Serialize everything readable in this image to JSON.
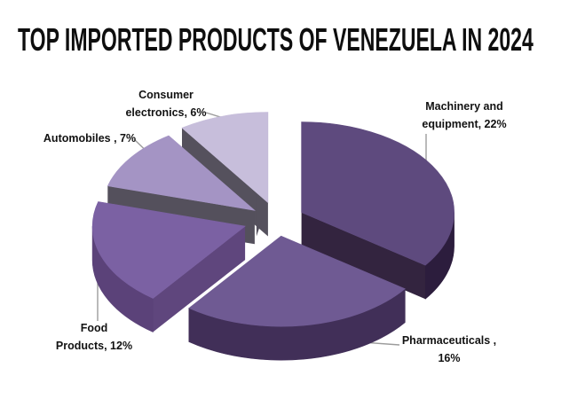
{
  "title": "TOP IMPORTED PRODUCTS OF VENEZUELA IN 2024",
  "chart_data": {
    "type": "pie",
    "style": "3d_exploded",
    "title": "TOP IMPORTED PRODUCTS OF VENEZUELA IN 2024",
    "unit": "percent",
    "start_angle_deg": 90,
    "direction": "clockwise",
    "legend_position": "none",
    "categories": [
      "Machinery and equipment",
      "Pharmaceuticals",
      "Food Products",
      "Automobiles",
      "Consumer electronics"
    ],
    "values": [
      22,
      16,
      12,
      7,
      6
    ],
    "slices": [
      {
        "label": "Machinery and equipment",
        "value": 22,
        "display": [
          "Machinery and",
          "equipment, 22%"
        ],
        "colors": {
          "top": "#5e4a7e",
          "side": "#2c1d3d",
          "cut": "#33243f"
        }
      },
      {
        "label": "Pharmaceuticals",
        "value": 16,
        "display": [
          "Pharmaceuticals ,",
          "16%"
        ],
        "colors": {
          "top": "#6f5a93",
          "side": "#412f58",
          "cut": "#412f58"
        }
      },
      {
        "label": "Food Products",
        "value": 12,
        "display": [
          "Food",
          "Products, 12%"
        ],
        "colors": {
          "top": "#7b61a3",
          "side": "#5b4279",
          "cut": "#5f467d"
        }
      },
      {
        "label": "Automobiles",
        "value": 7,
        "display": [
          "Automobiles , 7%"
        ],
        "colors": {
          "top": "#a494c4",
          "side": "#54505c",
          "cut": "#54505c"
        }
      },
      {
        "label": "Consumer electronics",
        "value": 6,
        "display": [
          "Consumer",
          "electronics, 6%"
        ],
        "colors": {
          "top": "#c7bedb",
          "side": "#55515d",
          "cut": "#55515d"
        }
      }
    ],
    "leader_line_color": "#9c9c9c",
    "label_text_color": "#121212",
    "background": "#ffffff"
  }
}
